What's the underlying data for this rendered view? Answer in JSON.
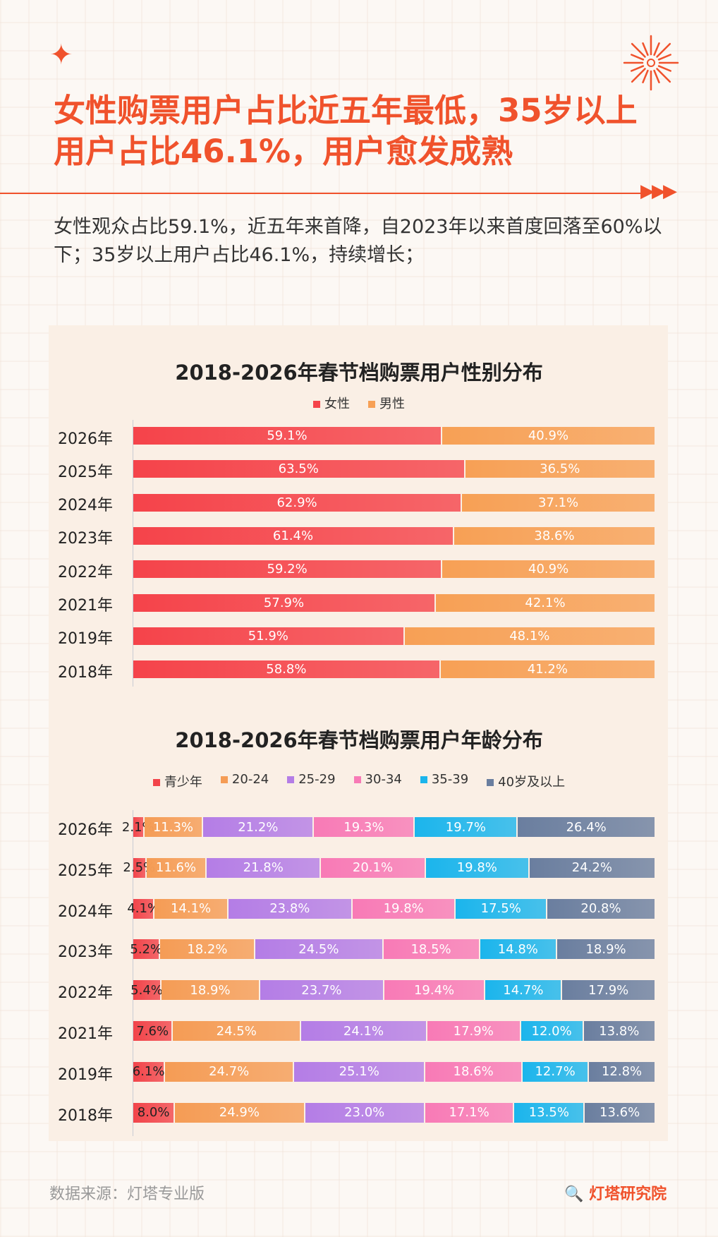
{
  "header": {
    "title": "女性购票用户占比近五年最低，35岁以上用户占比46.1%，用户愈发成熟",
    "subtitle": "女性观众占比59.1%，近五年来首降，自2023年以来首度回落至60%以下；35岁以上用户占比46.1%，持续增长；"
  },
  "footer": {
    "source": "数据来源：灯塔专业版",
    "brand": "灯塔研究院"
  },
  "chart_data": [
    {
      "type": "bar",
      "orientation": "horizontal",
      "stacked": true,
      "title": "2018-2026年春节档购票用户性别分布",
      "legend_position": "top",
      "categories": [
        "2026年",
        "2025年",
        "2024年",
        "2023年",
        "2022年",
        "2021年",
        "2019年",
        "2018年"
      ],
      "series": [
        {
          "name": "女性",
          "color": "#f5434a",
          "values": [
            59.1,
            63.5,
            62.9,
            61.4,
            59.2,
            57.9,
            51.9,
            58.8
          ]
        },
        {
          "name": "男性",
          "color": "#f7a055",
          "values": [
            40.9,
            36.5,
            37.1,
            38.6,
            40.9,
            42.1,
            48.1,
            41.2
          ]
        }
      ]
    },
    {
      "type": "bar",
      "orientation": "horizontal",
      "stacked": true,
      "title": "2018-2026年春节档购票用户年龄分布",
      "legend_position": "top",
      "categories": [
        "2026年",
        "2025年",
        "2024年",
        "2023年",
        "2022年",
        "2021年",
        "2019年",
        "2018年"
      ],
      "series": [
        {
          "name": "青少年",
          "color": "#f2444a",
          "values": [
            2.1,
            2.5,
            4.1,
            5.2,
            5.4,
            7.6,
            6.1,
            8.0
          ]
        },
        {
          "name": "20-24",
          "color": "#f59c55",
          "values": [
            11.3,
            11.6,
            14.1,
            18.2,
            18.9,
            24.5,
            24.7,
            24.9
          ]
        },
        {
          "name": "25-29",
          "color": "#b47de6",
          "values": [
            21.2,
            21.8,
            23.8,
            24.5,
            23.7,
            24.1,
            25.1,
            23.0
          ]
        },
        {
          "name": "30-34",
          "color": "#f87ab6",
          "values": [
            19.3,
            20.1,
            19.8,
            18.5,
            19.4,
            17.9,
            18.6,
            17.1
          ]
        },
        {
          "name": "35-39",
          "color": "#1bb5ec",
          "values": [
            19.7,
            19.8,
            17.5,
            14.8,
            14.7,
            12.0,
            12.7,
            13.5
          ]
        },
        {
          "name": "40岁及以上",
          "color": "#6a7e9f",
          "values": [
            26.4,
            24.2,
            20.8,
            18.9,
            17.9,
            13.8,
            12.8,
            13.6
          ]
        }
      ]
    }
  ]
}
